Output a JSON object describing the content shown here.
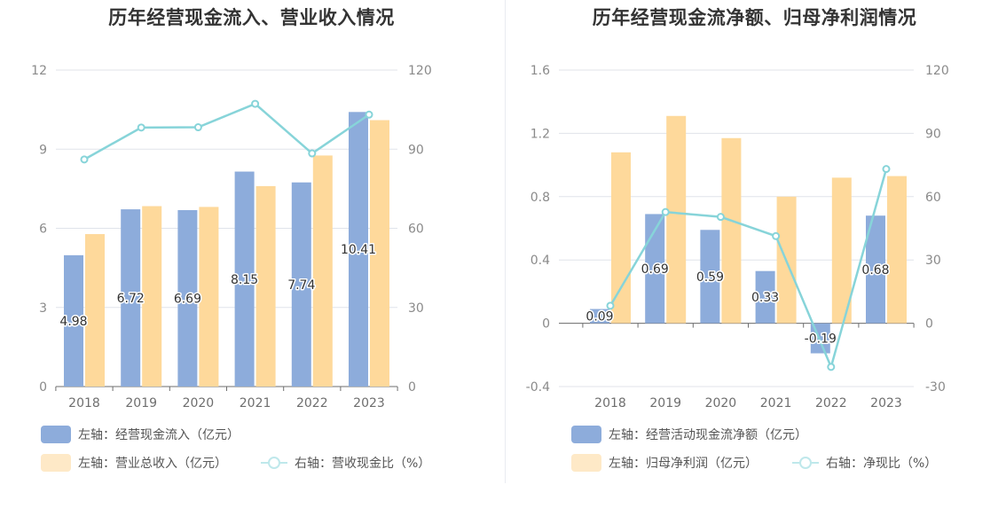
{
  "colors": {
    "bar1": "#8dacdb",
    "bar2": "#fed99b",
    "line": "#87d4d9",
    "grid": "#e0e3ea",
    "axis": "#6e6e6e"
  },
  "chart_data": [
    {
      "type": "bar",
      "title": "历年经营现金流入、营业收入情况",
      "categories": [
        "2018",
        "2019",
        "2020",
        "2021",
        "2022",
        "2023"
      ],
      "series": [
        {
          "name": "左轴：经营现金流入（亿元）",
          "axis": "left",
          "kind": "bar",
          "values": [
            4.98,
            6.72,
            6.69,
            8.15,
            7.74,
            10.41
          ],
          "labels": [
            "4.98",
            "6.72",
            "6.69",
            "8.15",
            "7.74",
            "10.41"
          ]
        },
        {
          "name": "左轴：营业总收入（亿元）",
          "axis": "left",
          "kind": "bar",
          "values": [
            5.78,
            6.84,
            6.81,
            7.6,
            8.76,
            10.1
          ]
        },
        {
          "name": "右轴：营收现金比（%）",
          "axis": "right",
          "kind": "line",
          "values": [
            86.1,
            98.2,
            98.3,
            107.2,
            88.4,
            103.1
          ]
        }
      ],
      "left_ticks": [
        "0",
        "3",
        "6",
        "9",
        "12"
      ],
      "right_ticks": [
        "0",
        "30",
        "60",
        "90",
        "120"
      ],
      "ylim": [
        0,
        12
      ],
      "y2lim": [
        0,
        120
      ],
      "grid": true,
      "legend": "bottom-left"
    },
    {
      "type": "bar",
      "title": "历年经营现金流净额、归母净利润情况",
      "categories": [
        "2018",
        "2019",
        "2020",
        "2021",
        "2022",
        "2023"
      ],
      "series": [
        {
          "name": "左轴：经营活动现金流净额（亿元）",
          "axis": "left",
          "kind": "bar",
          "values": [
            0.09,
            0.69,
            0.59,
            0.33,
            -0.19,
            0.68
          ],
          "labels": [
            "0.09",
            "0.69",
            "0.59",
            "0.33",
            "-0.19",
            "0.68"
          ]
        },
        {
          "name": "左轴：归母净利润（亿元）",
          "axis": "left",
          "kind": "bar",
          "values": [
            1.08,
            1.31,
            1.17,
            0.8,
            0.92,
            0.93
          ]
        },
        {
          "name": "右轴：净现比（%）",
          "axis": "right",
          "kind": "line",
          "values": [
            8.3,
            52.7,
            50.4,
            41.3,
            -20.7,
            73.1
          ]
        }
      ],
      "left_ticks": [
        "-0.4",
        "0",
        "0.4",
        "0.8",
        "1.2",
        "1.6"
      ],
      "right_ticks": [
        "-30",
        "0",
        "30",
        "60",
        "90",
        "120"
      ],
      "ylim": [
        -0.4,
        1.6
      ],
      "y2lim": [
        -30,
        120
      ],
      "grid": true,
      "legend": "bottom-left"
    }
  ]
}
